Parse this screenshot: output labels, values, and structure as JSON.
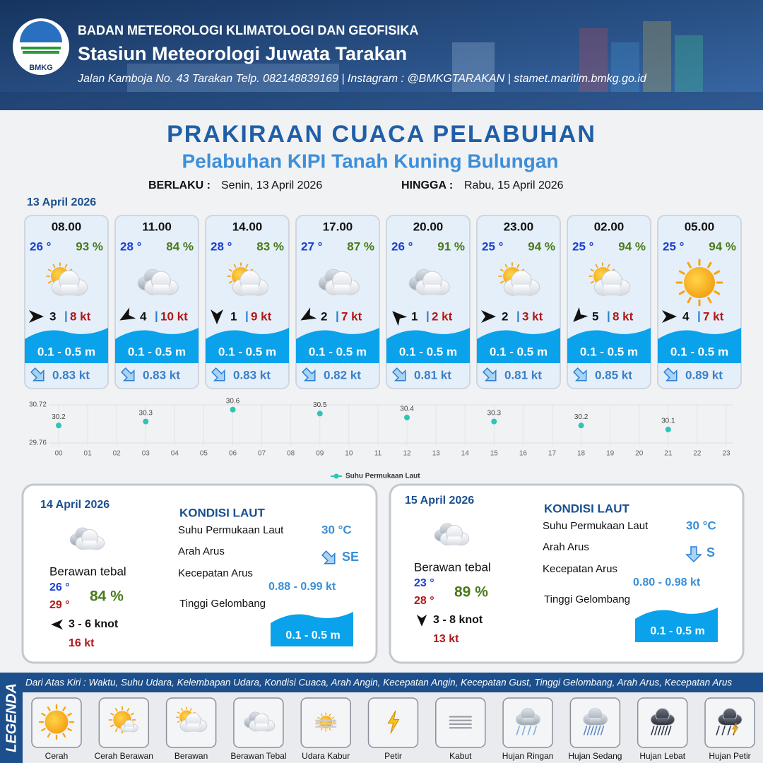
{
  "header": {
    "org": "BADAN METEOROLOGI KLIMATOLOGI DAN GEOFISIKA",
    "station": "Stasiun Meteorologi Juwata Tarakan",
    "contact": "Jalan Kamboja No. 43 Tarakan  Telp. 082148839169 | Instagram : @BMKGTARAKAN | stamet.maritim.bmkg.go.id",
    "logo": "BMKG"
  },
  "title": "PRAKIRAAN CUACA PELABUHAN",
  "subtitle": "Pelabuhan KIPI Tanah Kuning Bulungan",
  "validity": {
    "from_label": "BERLAKU :",
    "from": "Senin, 13 April 2026",
    "to_label": "HINGGA :",
    "to": "Rabu, 15 April 2026"
  },
  "today": {
    "date": "13 April 2026",
    "forecasts": [
      {
        "time": "08.00",
        "temp": "26 °",
        "humidity": "93 %",
        "condition": "Berawan",
        "wind": "3",
        "gust": "8 kt",
        "wave": "0.1 - 0.5 m",
        "current": "0.83 kt"
      },
      {
        "time": "11.00",
        "temp": "28 °",
        "humidity": "84 %",
        "condition": "Berawan Tebal",
        "wind": "4",
        "gust": "10 kt",
        "wave": "0.1 - 0.5 m",
        "current": "0.83 kt"
      },
      {
        "time": "14.00",
        "temp": "28 °",
        "humidity": "83 %",
        "condition": "Berawan",
        "wind": "1",
        "gust": "9 kt",
        "wave": "0.1 - 0.5 m",
        "current": "0.83 kt"
      },
      {
        "time": "17.00",
        "temp": "27 °",
        "humidity": "87 %",
        "condition": "Berawan Tebal",
        "wind": "2",
        "gust": "7 kt",
        "wave": "0.1 - 0.5 m",
        "current": "0.82 kt"
      },
      {
        "time": "20.00",
        "temp": "26 °",
        "humidity": "91 %",
        "condition": "Berawan Tebal",
        "wind": "1",
        "gust": "2 kt",
        "wave": "0.1 - 0.5 m",
        "current": "0.81 kt"
      },
      {
        "time": "23.00",
        "temp": "25 °",
        "humidity": "94 %",
        "condition": "Berawan",
        "wind": "2",
        "gust": "3 kt",
        "wave": "0.1 - 0.5 m",
        "current": "0.81 kt"
      },
      {
        "time": "02.00",
        "temp": "25 °",
        "humidity": "94 %",
        "condition": "Berawan",
        "wind": "5",
        "gust": "8 kt",
        "wave": "0.1 - 0.5 m",
        "current": "0.85 kt"
      },
      {
        "time": "05.00",
        "temp": "25 °",
        "humidity": "94 %",
        "condition": "Cerah",
        "wind": "4",
        "gust": "7 kt",
        "wave": "0.1 - 0.5 m",
        "current": "0.89 kt"
      }
    ]
  },
  "chart_data": {
    "type": "scatter",
    "categories": [
      "00",
      "01",
      "02",
      "03",
      "04",
      "05",
      "06",
      "07",
      "08",
      "09",
      "10",
      "11",
      "12",
      "13",
      "14",
      "15",
      "16",
      "17",
      "18",
      "19",
      "20",
      "21",
      "22",
      "23"
    ],
    "series": [
      {
        "name": "Suhu Permukaan Laut",
        "color": "#2ec4b6",
        "values": [
          30.2,
          null,
          null,
          30.3,
          null,
          null,
          30.6,
          null,
          null,
          30.5,
          null,
          null,
          30.4,
          null,
          null,
          30.3,
          null,
          null,
          30.2,
          null,
          null,
          30.1,
          null,
          null
        ]
      }
    ],
    "ylim": [
      29.76,
      30.72
    ],
    "yticks": [
      29.76,
      30.72
    ],
    "grid": true
  },
  "days": [
    {
      "date": "14 April 2026",
      "condition": "Berawan tebal",
      "temp_min": "26 °",
      "temp_max": "29 °",
      "humidity": "84 %",
      "wind": "3  - 6 knot",
      "gust": "16 kt",
      "sea_heading": "KONDISI LAUT",
      "sst_label": "Suhu Permukaan Laut",
      "sst": "30 °C",
      "direction_label": "Arah Arus",
      "direction": "SE",
      "speed_label": "Kecepatan Arus",
      "speed": "0.88 - 0.99 kt",
      "wave_label": "Tinggi Gelombang",
      "wave": "0.1 - 0.5 m"
    },
    {
      "date": "15 April 2026",
      "condition": "Berawan tebal",
      "temp_min": "23 °",
      "temp_max": "28 °",
      "humidity": "89 %",
      "wind": "3  - 8 knot",
      "gust": "13 kt",
      "sea_heading": "KONDISI LAUT",
      "sst_label": "Suhu Permukaan Laut",
      "sst": "30 °C",
      "direction_label": "Arah Arus",
      "direction": "S",
      "speed_label": "Kecepatan Arus",
      "speed": "0.80 - 0.98 kt",
      "wave_label": "Tinggi Gelombang",
      "wave": "0.1 - 0.5 m"
    }
  ],
  "legend": {
    "title": "LEGENDA",
    "description": "Dari Atas Kiri : Waktu, Suhu Udara, Kelembapan Udara, Kondisi Cuaca, Arah Angin, Kecepatan Angin, Kecepatan Gust, Tinggi Gelombang, Arah Arus, Kecepatan Arus",
    "items": [
      "Cerah",
      "Cerah Berawan",
      "Berawan",
      "Berawan Tebal",
      "Udara Kabur",
      "Petir",
      "Kabut",
      "Hujan Ringan",
      "Hujan Sedang",
      "Hujan Lebat",
      "Hujan Petir"
    ]
  }
}
